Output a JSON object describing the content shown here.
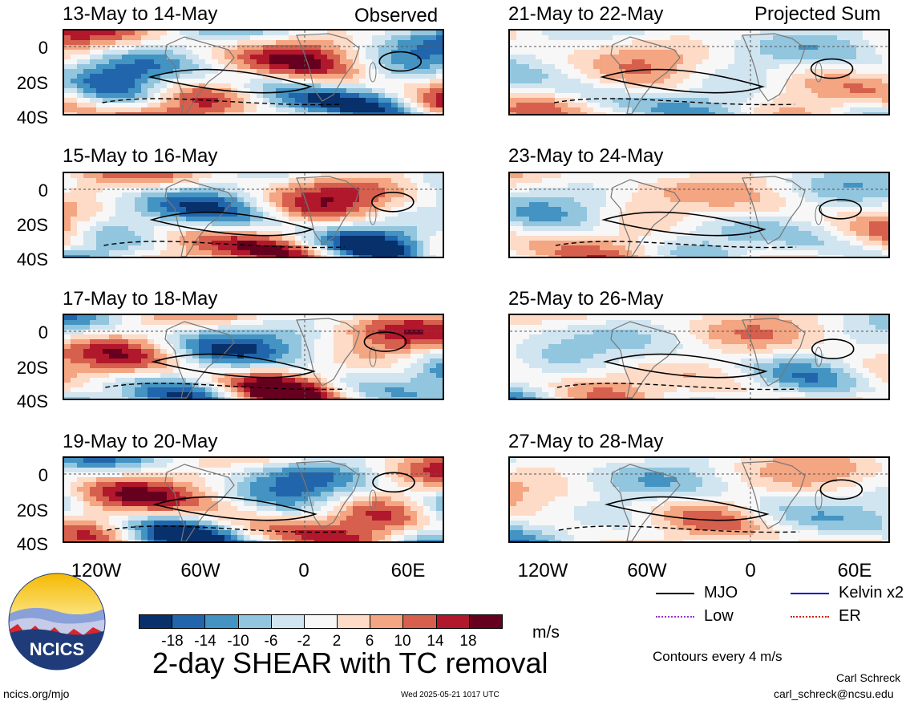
{
  "header_tags": {
    "left": "Observed",
    "right": "Projected Sum"
  },
  "panels": [
    {
      "id": "p1",
      "title": "13-May to 14-May"
    },
    {
      "id": "p2",
      "title": "15-May to 16-May"
    },
    {
      "id": "p3",
      "title": "17-May to 18-May"
    },
    {
      "id": "p4",
      "title": "19-May to 20-May"
    },
    {
      "id": "p5",
      "title": "21-May to 22-May"
    },
    {
      "id": "p6",
      "title": "23-May to 24-May"
    },
    {
      "id": "p7",
      "title": "25-May to 26-May"
    },
    {
      "id": "p8",
      "title": "27-May to 28-May"
    }
  ],
  "axes": {
    "lat_labels": [
      "0",
      "20S",
      "40S"
    ],
    "lon_labels": [
      "120W",
      "60W",
      "0",
      "60E"
    ]
  },
  "colorbar": {
    "tick_labels": [
      "-18",
      "-14",
      "-10",
      "-6",
      "-2",
      "2",
      "6",
      "10",
      "14",
      "18"
    ],
    "colors": [
      "#08306b",
      "#2166ac",
      "#4393c3",
      "#92c5de",
      "#d1e5f0",
      "#f7f7f7",
      "#fddbc7",
      "#f4a582",
      "#d6604d",
      "#b2182b",
      "#67001f"
    ],
    "unit": "m/s"
  },
  "legend": {
    "items": [
      {
        "label": "MJO",
        "color": "#000000",
        "style": "solid"
      },
      {
        "label": "Kelvin x2",
        "color": "#0000cc",
        "style": "solid"
      },
      {
        "label": "Low",
        "color": "#9933cc",
        "style": "dotted"
      },
      {
        "label": "ER",
        "color": "#cc2200",
        "style": "dotted"
      }
    ],
    "contour_note": "Contours every 4 m/s"
  },
  "title": "2-day SHEAR with TC removal",
  "logo_text": "NCICS",
  "footer": {
    "left": "ncics.org/mjo",
    "center": "Wed 2025-05-21 1017 UTC",
    "author": "Carl Schreck",
    "email": "carl_schreck@ncsu.edu"
  }
}
